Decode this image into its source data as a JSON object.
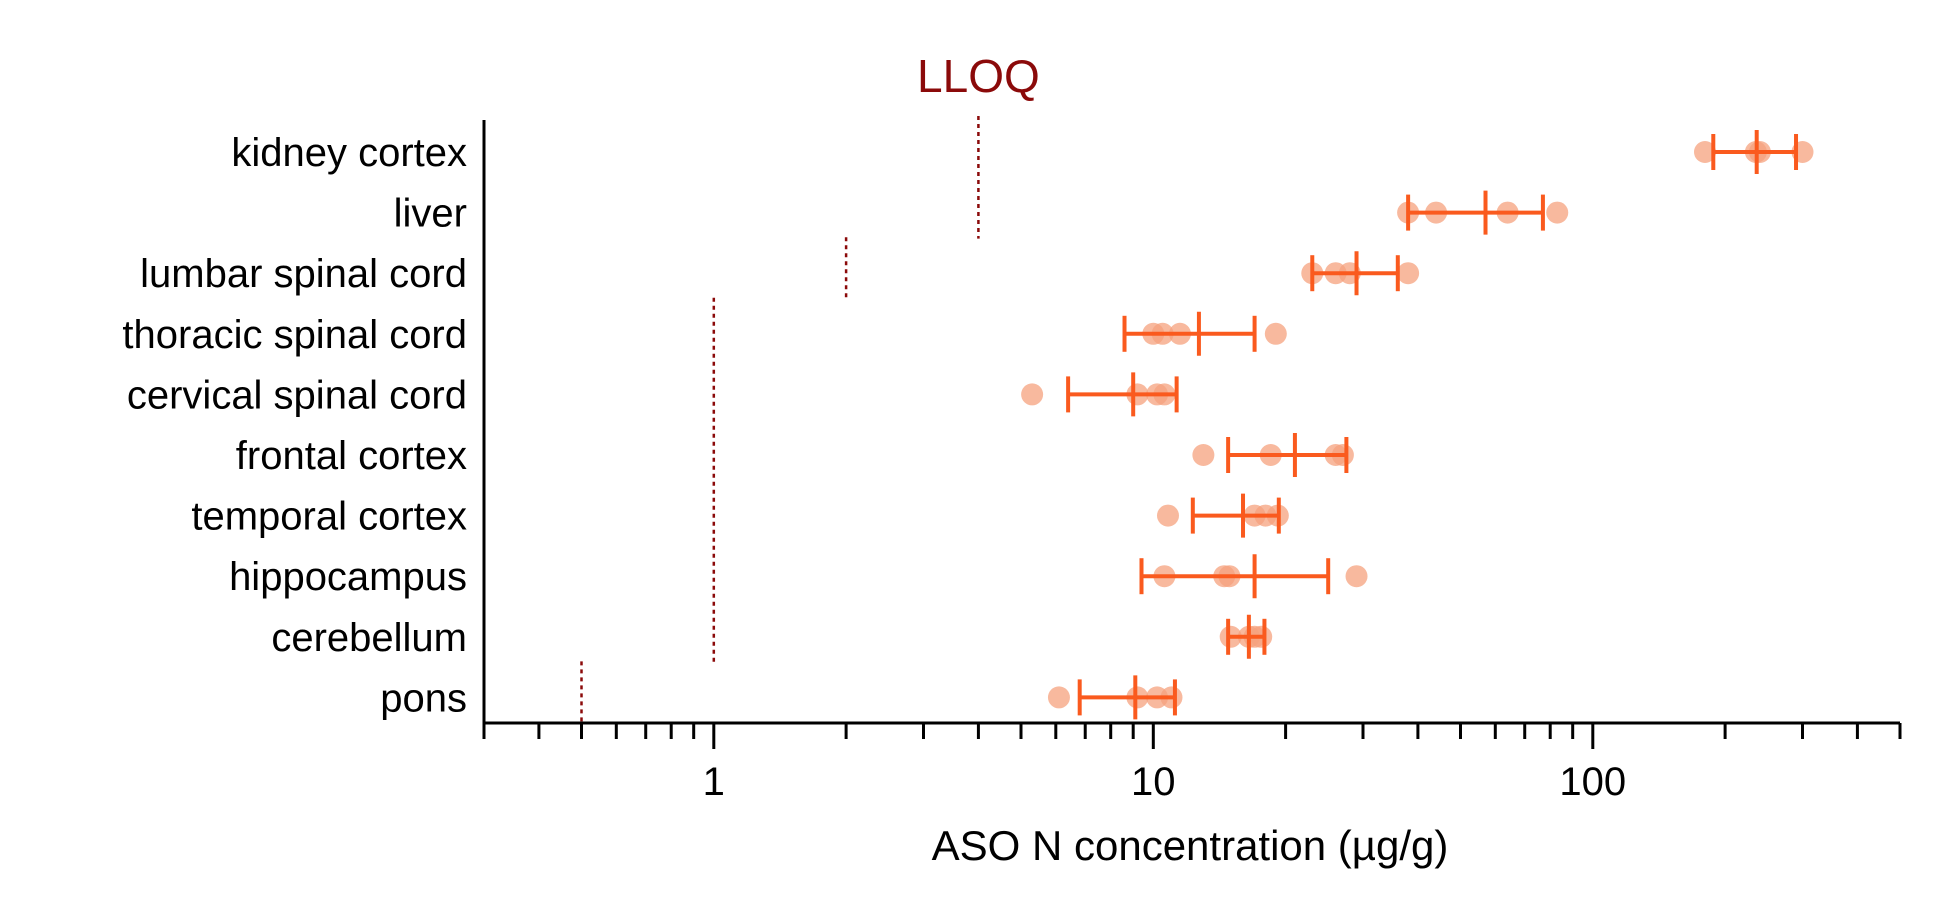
{
  "chart_data": {
    "type": "scatter",
    "orientation": "horizontal",
    "xscale": "log",
    "xlim": [
      0.3,
      500
    ],
    "xlabel": "ASO N concentration (µg/g)",
    "xticks": [
      1,
      10,
      100
    ],
    "xtick_labels": [
      "1",
      "10",
      "100"
    ],
    "categories": [
      "kidney cortex",
      "liver",
      "lumbar spinal cord",
      "thoracic spinal cord",
      "cervical spinal cord",
      "frontal cortex",
      "temporal cortex",
      "hippocampus",
      "cerebellum",
      "pons"
    ],
    "points": [
      [
        180,
        235,
        240,
        300
      ],
      [
        38,
        44,
        64,
        83
      ],
      [
        23,
        26,
        28,
        38
      ],
      [
        10,
        10.5,
        11.5,
        19
      ],
      [
        5.3,
        9.2,
        10.2,
        10.6
      ],
      [
        13,
        18.5,
        26,
        27
      ],
      [
        10.8,
        17,
        18,
        19.2
      ],
      [
        10.6,
        14.5,
        14.9,
        29
      ],
      [
        15,
        16.5,
        17,
        17.6
      ],
      [
        6.1,
        9.2,
        10.2,
        11
      ]
    ],
    "mean": [
      236,
      57,
      29,
      12.7,
      9.0,
      21,
      16,
      17,
      16.5,
      9.1
    ],
    "error_low": [
      188,
      38,
      23,
      8.6,
      6.4,
      14.8,
      12.3,
      9.4,
      14.8,
      6.8
    ],
    "error_high": [
      290,
      77,
      36,
      17,
      11.3,
      27.5,
      19.3,
      25,
      17.9,
      11.2
    ],
    "lloq": {
      "label": "LLOQ",
      "segments": [
        {
          "value": 4,
          "from_category": 0,
          "to_category": 1
        },
        {
          "value": 2,
          "from_category": 2,
          "to_category": 2
        },
        {
          "value": 1,
          "from_category": 3,
          "to_category": 8
        },
        {
          "value": 0.5,
          "from_category": 9,
          "to_category": 9
        }
      ]
    },
    "colors": {
      "points": "#f5a17e",
      "error_bar": "#fa5a1e",
      "lloq": "#8b0a0a",
      "axis": "#000000"
    },
    "grid": false,
    "legend": "none"
  }
}
